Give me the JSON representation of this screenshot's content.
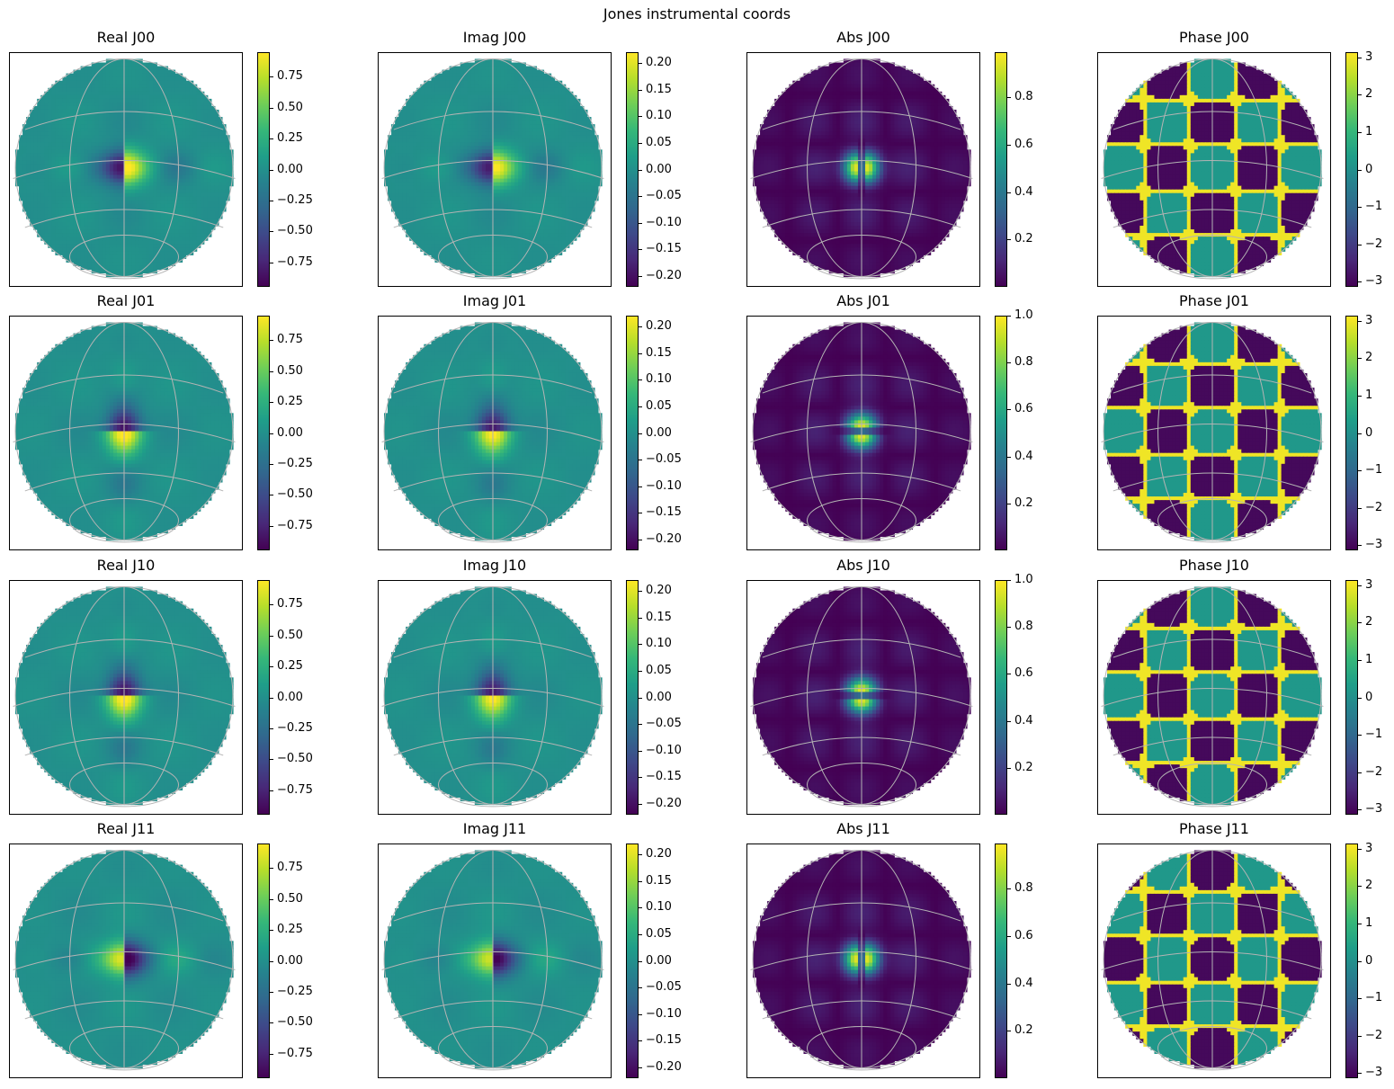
{
  "figure": {
    "suptitle": "Jones instrumental coords"
  },
  "chart_data": {
    "type": "heatmap",
    "layout": "4x4 grid of all-sky heatmaps with colorbars",
    "colormap": "viridis",
    "colormap_stops": [
      "#440154",
      "#482878",
      "#3e4989",
      "#31688e",
      "#26828e",
      "#1f9e89",
      "#35b779",
      "#6ece58",
      "#b5de2b",
      "#fde725"
    ],
    "grid_overlay": true,
    "rows": [
      "J00",
      "J01",
      "J10",
      "J11"
    ],
    "columns": [
      "Real",
      "Imag",
      "Abs",
      "Phase"
    ],
    "panels": [
      {
        "title": "Real J00",
        "kind": "real",
        "orientation": "horizontal",
        "sign": 1,
        "clim": [
          -0.95,
          0.95
        ],
        "ticks": [
          {
            "v": 0.75,
            "label": "0.75"
          },
          {
            "v": 0.5,
            "label": "0.50"
          },
          {
            "v": 0.25,
            "label": "0.25"
          },
          {
            "v": 0.0,
            "label": "0.00"
          },
          {
            "v": -0.25,
            "label": "−0.25"
          },
          {
            "v": -0.5,
            "label": "−0.50"
          },
          {
            "v": -0.75,
            "label": "−0.75"
          }
        ]
      },
      {
        "title": "Imag J00",
        "kind": "imag",
        "orientation": "horizontal",
        "sign": 1,
        "clim": [
          -0.22,
          0.22
        ],
        "ticks": [
          {
            "v": 0.2,
            "label": "0.20"
          },
          {
            "v": 0.15,
            "label": "0.15"
          },
          {
            "v": 0.1,
            "label": "0.10"
          },
          {
            "v": 0.05,
            "label": "0.05"
          },
          {
            "v": 0.0,
            "label": "0.00"
          },
          {
            "v": -0.05,
            "label": "−0.05"
          },
          {
            "v": -0.1,
            "label": "−0.10"
          },
          {
            "v": -0.15,
            "label": "−0.15"
          },
          {
            "v": -0.2,
            "label": "−0.20"
          }
        ]
      },
      {
        "title": "Abs J00",
        "kind": "abs",
        "orientation": "horizontal",
        "sign": 1,
        "clim": [
          0.0,
          0.99
        ],
        "ticks": [
          {
            "v": 0.8,
            "label": "0.8"
          },
          {
            "v": 0.6,
            "label": "0.6"
          },
          {
            "v": 0.4,
            "label": "0.4"
          },
          {
            "v": 0.2,
            "label": "0.2"
          }
        ]
      },
      {
        "title": "Phase J00",
        "kind": "phase",
        "orientation": "horizontal",
        "sign": 1,
        "clim": [
          -3.14,
          3.14
        ],
        "ticks": [
          {
            "v": 3,
            "label": "3"
          },
          {
            "v": 2,
            "label": "2"
          },
          {
            "v": 1,
            "label": "1"
          },
          {
            "v": 0,
            "label": "0"
          },
          {
            "v": -1,
            "label": "−1"
          },
          {
            "v": -2,
            "label": "−2"
          },
          {
            "v": -3,
            "label": "−3"
          }
        ]
      },
      {
        "title": "Real J01",
        "kind": "real",
        "orientation": "vertical",
        "sign": 1,
        "clim": [
          -0.95,
          0.95
        ],
        "ticks": [
          {
            "v": 0.75,
            "label": "0.75"
          },
          {
            "v": 0.5,
            "label": "0.50"
          },
          {
            "v": 0.25,
            "label": "0.25"
          },
          {
            "v": 0.0,
            "label": "0.00"
          },
          {
            "v": -0.25,
            "label": "−0.25"
          },
          {
            "v": -0.5,
            "label": "−0.50"
          },
          {
            "v": -0.75,
            "label": "−0.75"
          }
        ]
      },
      {
        "title": "Imag J01",
        "kind": "imag",
        "orientation": "vertical",
        "sign": 1,
        "clim": [
          -0.22,
          0.22
        ],
        "ticks": [
          {
            "v": 0.2,
            "label": "0.20"
          },
          {
            "v": 0.15,
            "label": "0.15"
          },
          {
            "v": 0.1,
            "label": "0.10"
          },
          {
            "v": 0.05,
            "label": "0.05"
          },
          {
            "v": 0.0,
            "label": "0.00"
          },
          {
            "v": -0.05,
            "label": "−0.05"
          },
          {
            "v": -0.1,
            "label": "−0.10"
          },
          {
            "v": -0.15,
            "label": "−0.15"
          },
          {
            "v": -0.2,
            "label": "−0.20"
          }
        ]
      },
      {
        "title": "Abs J01",
        "kind": "abs",
        "orientation": "vertical",
        "sign": 1,
        "clim": [
          0.0,
          1.0
        ],
        "ticks": [
          {
            "v": 1.0,
            "label": "1.0"
          },
          {
            "v": 0.8,
            "label": "0.8"
          },
          {
            "v": 0.6,
            "label": "0.6"
          },
          {
            "v": 0.4,
            "label": "0.4"
          },
          {
            "v": 0.2,
            "label": "0.2"
          }
        ]
      },
      {
        "title": "Phase J01",
        "kind": "phase",
        "orientation": "vertical",
        "sign": 1,
        "clim": [
          -3.14,
          3.14
        ],
        "ticks": [
          {
            "v": 3,
            "label": "3"
          },
          {
            "v": 2,
            "label": "2"
          },
          {
            "v": 1,
            "label": "1"
          },
          {
            "v": 0,
            "label": "0"
          },
          {
            "v": -1,
            "label": "−1"
          },
          {
            "v": -2,
            "label": "−2"
          },
          {
            "v": -3,
            "label": "−3"
          }
        ]
      },
      {
        "title": "Real J10",
        "kind": "real",
        "orientation": "vertical",
        "sign": 1,
        "clim": [
          -0.95,
          0.95
        ],
        "ticks": [
          {
            "v": 0.75,
            "label": "0.75"
          },
          {
            "v": 0.5,
            "label": "0.50"
          },
          {
            "v": 0.25,
            "label": "0.25"
          },
          {
            "v": 0.0,
            "label": "0.00"
          },
          {
            "v": -0.25,
            "label": "−0.25"
          },
          {
            "v": -0.5,
            "label": "−0.50"
          },
          {
            "v": -0.75,
            "label": "−0.75"
          }
        ]
      },
      {
        "title": "Imag J10",
        "kind": "imag",
        "orientation": "vertical",
        "sign": 1,
        "clim": [
          -0.22,
          0.22
        ],
        "ticks": [
          {
            "v": 0.2,
            "label": "0.20"
          },
          {
            "v": 0.15,
            "label": "0.15"
          },
          {
            "v": 0.1,
            "label": "0.10"
          },
          {
            "v": 0.05,
            "label": "0.05"
          },
          {
            "v": 0.0,
            "label": "0.00"
          },
          {
            "v": -0.05,
            "label": "−0.05"
          },
          {
            "v": -0.1,
            "label": "−0.10"
          },
          {
            "v": -0.15,
            "label": "−0.15"
          },
          {
            "v": -0.2,
            "label": "−0.20"
          }
        ]
      },
      {
        "title": "Abs J10",
        "kind": "abs",
        "orientation": "vertical",
        "sign": 1,
        "clim": [
          0.0,
          1.0
        ],
        "ticks": [
          {
            "v": 1.0,
            "label": "1.0"
          },
          {
            "v": 0.8,
            "label": "0.8"
          },
          {
            "v": 0.6,
            "label": "0.6"
          },
          {
            "v": 0.4,
            "label": "0.4"
          },
          {
            "v": 0.2,
            "label": "0.2"
          }
        ]
      },
      {
        "title": "Phase J10",
        "kind": "phase",
        "orientation": "vertical",
        "sign": 1,
        "clim": [
          -3.14,
          3.14
        ],
        "ticks": [
          {
            "v": 3,
            "label": "3"
          },
          {
            "v": 2,
            "label": "2"
          },
          {
            "v": 1,
            "label": "1"
          },
          {
            "v": 0,
            "label": "0"
          },
          {
            "v": -1,
            "label": "−1"
          },
          {
            "v": -2,
            "label": "−2"
          },
          {
            "v": -3,
            "label": "−3"
          }
        ]
      },
      {
        "title": "Real J11",
        "kind": "real",
        "orientation": "horizontal",
        "sign": -1,
        "clim": [
          -0.95,
          0.95
        ],
        "ticks": [
          {
            "v": 0.75,
            "label": "0.75"
          },
          {
            "v": 0.5,
            "label": "0.50"
          },
          {
            "v": 0.25,
            "label": "0.25"
          },
          {
            "v": 0.0,
            "label": "0.00"
          },
          {
            "v": -0.25,
            "label": "−0.25"
          },
          {
            "v": -0.5,
            "label": "−0.50"
          },
          {
            "v": -0.75,
            "label": "−0.75"
          }
        ]
      },
      {
        "title": "Imag J11",
        "kind": "imag",
        "orientation": "horizontal",
        "sign": -1,
        "clim": [
          -0.22,
          0.22
        ],
        "ticks": [
          {
            "v": 0.2,
            "label": "0.20"
          },
          {
            "v": 0.15,
            "label": "0.15"
          },
          {
            "v": 0.1,
            "label": "0.10"
          },
          {
            "v": 0.05,
            "label": "0.05"
          },
          {
            "v": 0.0,
            "label": "0.00"
          },
          {
            "v": -0.05,
            "label": "−0.05"
          },
          {
            "v": -0.1,
            "label": "−0.10"
          },
          {
            "v": -0.15,
            "label": "−0.15"
          },
          {
            "v": -0.2,
            "label": "−0.20"
          }
        ]
      },
      {
        "title": "Abs J11",
        "kind": "abs",
        "orientation": "horizontal",
        "sign": 1,
        "clim": [
          0.0,
          0.99
        ],
        "ticks": [
          {
            "v": 0.8,
            "label": "0.8"
          },
          {
            "v": 0.6,
            "label": "0.6"
          },
          {
            "v": 0.4,
            "label": "0.4"
          },
          {
            "v": 0.2,
            "label": "0.2"
          }
        ]
      },
      {
        "title": "Phase J11",
        "kind": "phase",
        "orientation": "horizontal",
        "sign": -1,
        "clim": [
          -3.14,
          3.14
        ],
        "ticks": [
          {
            "v": 3,
            "label": "3"
          },
          {
            "v": 2,
            "label": "2"
          },
          {
            "v": 1,
            "label": "1"
          },
          {
            "v": 0,
            "label": "0"
          },
          {
            "v": -1,
            "label": "−1"
          },
          {
            "v": -2,
            "label": "−2"
          },
          {
            "v": -3,
            "label": "−3"
          }
        ]
      }
    ]
  }
}
